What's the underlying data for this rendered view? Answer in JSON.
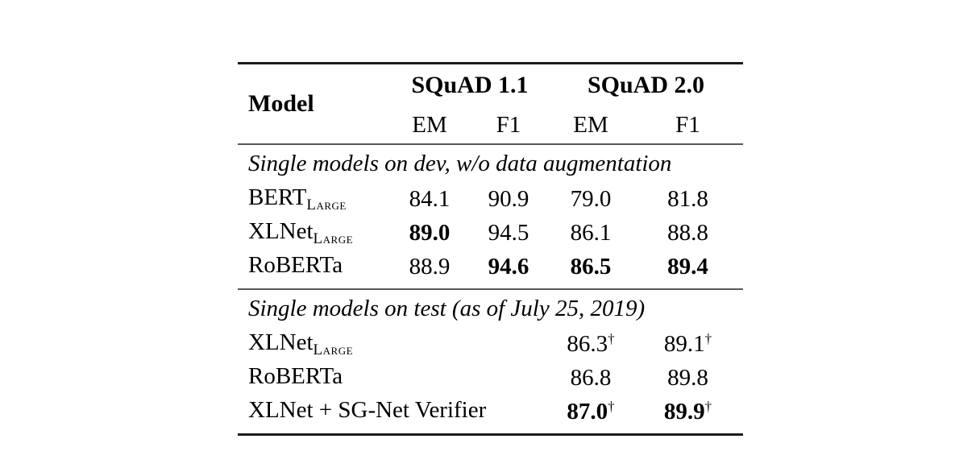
{
  "page": {
    "background": "#ffffff",
    "text_color": "#000000",
    "rule_heavy_color": "#1c1c1c",
    "rule_light_color": "#585858"
  },
  "table": {
    "header": {
      "model_label": "Model",
      "groups": [
        {
          "label": "SQuAD 1.1",
          "subcolumns": [
            "EM",
            "F1"
          ]
        },
        {
          "label": "SQuAD 2.0",
          "subcolumns": [
            "EM",
            "F1"
          ]
        }
      ],
      "sub": {
        "em1": "EM",
        "f1a": "F1",
        "em2": "EM",
        "f1b": "F1"
      }
    },
    "sections": [
      {
        "title": "Single models on dev, w/o data augmentation",
        "rows": [
          {
            "model": "BERT",
            "model_subscript": "Large",
            "cells": [
              {
                "v": "84.1",
                "bold": false
              },
              {
                "v": "90.9",
                "bold": false
              },
              {
                "v": "79.0",
                "bold": false
              },
              {
                "v": "81.8",
                "bold": false
              }
            ]
          },
          {
            "model": "XLNet",
            "model_subscript": "Large",
            "cells": [
              {
                "v": "89.0",
                "bold": true
              },
              {
                "v": "94.5",
                "bold": false
              },
              {
                "v": "86.1",
                "bold": false
              },
              {
                "v": "88.8",
                "bold": false
              }
            ]
          },
          {
            "model": "RoBERTa",
            "model_subscript": "",
            "cells": [
              {
                "v": "88.9",
                "bold": false
              },
              {
                "v": "94.6",
                "bold": true
              },
              {
                "v": "86.5",
                "bold": true
              },
              {
                "v": "89.4",
                "bold": true
              }
            ]
          }
        ]
      },
      {
        "title": "Single models on test (as of July 25, 2019)",
        "rows": [
          {
            "model": "XLNet",
            "model_subscript": "Large",
            "cells": [
              {
                "v": "",
                "bold": false
              },
              {
                "v": "",
                "bold": false
              },
              {
                "v": "86.3",
                "bold": false,
                "sup": "†"
              },
              {
                "v": "89.1",
                "bold": false,
                "sup": "†"
              }
            ]
          },
          {
            "model": "RoBERTa",
            "model_subscript": "",
            "cells": [
              {
                "v": "",
                "bold": false
              },
              {
                "v": "",
                "bold": false
              },
              {
                "v": "86.8",
                "bold": false
              },
              {
                "v": "89.8",
                "bold": false
              }
            ]
          },
          {
            "model": "XLNet + SG-Net Verifier",
            "model_subscript": "",
            "cells": [
              {
                "v": "",
                "bold": false
              },
              {
                "v": "",
                "bold": false
              },
              {
                "v": "87.0",
                "bold": true,
                "sup": "†"
              },
              {
                "v": "89.9",
                "bold": true,
                "sup": "†"
              }
            ]
          }
        ]
      }
    ]
  }
}
